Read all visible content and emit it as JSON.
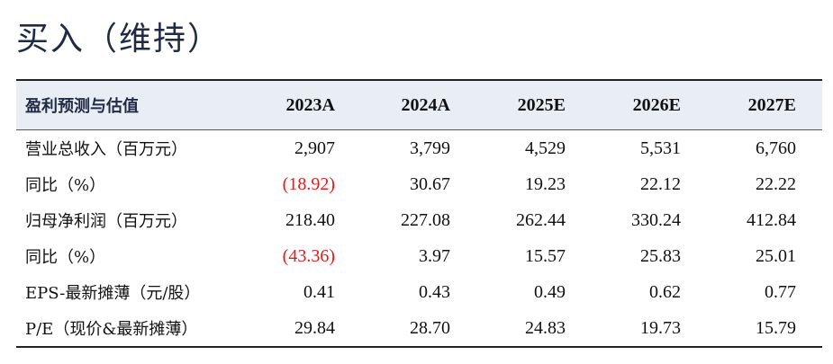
{
  "rating": "买入（维持）",
  "table": {
    "header": {
      "label": "盈利预测与估值",
      "years": [
        "2023A",
        "2024A",
        "2025E",
        "2026E",
        "2027E"
      ]
    },
    "rows": [
      {
        "label": "营业总收入（百万元）",
        "values": [
          "2,907",
          "3,799",
          "4,529",
          "5,531",
          "6,760"
        ]
      },
      {
        "label": "同比（%）",
        "values": [
          "(18.92)",
          "30.67",
          "19.23",
          "22.12",
          "22.22"
        ]
      },
      {
        "label": "归母净利润（百万元）",
        "values": [
          "218.40",
          "227.08",
          "262.44",
          "330.24",
          "412.84"
        ]
      },
      {
        "label": "同比（%）",
        "values": [
          "(43.36)",
          "3.97",
          "15.57",
          "25.83",
          "25.01"
        ]
      },
      {
        "label": "EPS-最新摊薄（元/股）",
        "values": [
          "0.41",
          "0.43",
          "0.49",
          "0.62",
          "0.77"
        ]
      },
      {
        "label": "P/E（现价&最新摊薄）",
        "values": [
          "29.84",
          "28.70",
          "24.83",
          "19.73",
          "15.79"
        ]
      }
    ],
    "negative_color": "#e31a1a",
    "header_bg": "#e9edf4"
  }
}
